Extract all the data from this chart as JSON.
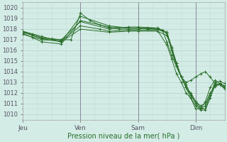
{
  "title": "Pression niveau de la mer( hPa )",
  "ylabel_values": [
    1010,
    1011,
    1012,
    1013,
    1014,
    1015,
    1016,
    1017,
    1018,
    1019,
    1020
  ],
  "ylim": [
    1009.5,
    1020.5
  ],
  "xlim": [
    0,
    84
  ],
  "xtick_positions": [
    0,
    24,
    48,
    72
  ],
  "xtick_labels": [
    "Jeu",
    "Ven",
    "Sam",
    "Dim"
  ],
  "bg_color": "#d4ece6",
  "grid_color": "#b8d8d0",
  "line_color": "#2a6e2a",
  "lines": [
    [
      0,
      1017.7,
      4,
      1017.5,
      8,
      1017.2,
      12,
      1017.1,
      16,
      1017.0,
      20,
      1017.0,
      24,
      1019.5,
      28,
      1018.8,
      32,
      1018.4,
      36,
      1018.1,
      40,
      1018.0,
      44,
      1018.0,
      48,
      1018.0,
      52,
      1018.1,
      56,
      1018.1,
      58,
      1017.9,
      60,
      1016.8,
      62,
      1015.5,
      64,
      1014.5,
      66,
      1013.5,
      68,
      1012.5,
      70,
      1012.0,
      72,
      1011.2,
      74,
      1010.6,
      76,
      1010.5,
      78,
      1011.8,
      80,
      1012.8,
      82,
      1012.8,
      84,
      1012.5
    ],
    [
      0,
      1017.5,
      8,
      1017.0,
      16,
      1016.9,
      24,
      1018.3,
      32,
      1018.0,
      36,
      1017.8,
      44,
      1017.9,
      48,
      1017.9,
      56,
      1017.9,
      60,
      1016.5,
      62,
      1015.2,
      64,
      1013.8,
      66,
      1013.0,
      68,
      1012.0,
      70,
      1011.5,
      72,
      1010.8,
      74,
      1010.4,
      76,
      1010.4,
      78,
      1011.5,
      80,
      1012.7,
      82,
      1012.9,
      84,
      1012.6
    ],
    [
      0,
      1017.8,
      4,
      1017.4,
      8,
      1017.1,
      16,
      1016.8,
      24,
      1018.0,
      36,
      1017.7,
      44,
      1017.8,
      48,
      1017.8,
      56,
      1017.8,
      60,
      1017.4,
      62,
      1016.2,
      64,
      1014.8,
      66,
      1013.5,
      68,
      1013.0,
      70,
      1013.2,
      72,
      1013.5,
      74,
      1013.8,
      76,
      1014.0,
      78,
      1013.5,
      80,
      1012.9,
      82,
      1012.8,
      84,
      1012.4
    ],
    [
      0,
      1017.6,
      4,
      1017.2,
      8,
      1016.8,
      16,
      1016.6,
      24,
      1018.8,
      36,
      1018.2,
      44,
      1018.1,
      48,
      1018.1,
      56,
      1018.0,
      60,
      1017.6,
      62,
      1016.0,
      64,
      1014.5,
      66,
      1013.5,
      68,
      1012.5,
      70,
      1011.8,
      72,
      1011.0,
      74,
      1010.5,
      76,
      1010.8,
      78,
      1011.8,
      80,
      1013.0,
      82,
      1013.1,
      84,
      1012.9
    ],
    [
      0,
      1017.7,
      8,
      1017.1,
      16,
      1017.0,
      24,
      1018.7,
      36,
      1018.0,
      44,
      1018.2,
      48,
      1018.2,
      56,
      1018.1,
      60,
      1017.7,
      62,
      1016.3,
      64,
      1014.8,
      66,
      1013.5,
      68,
      1012.5,
      70,
      1011.5,
      72,
      1010.5,
      74,
      1010.5,
      76,
      1011.2,
      78,
      1012.5,
      80,
      1013.2,
      82,
      1012.9,
      84,
      1012.7
    ],
    [
      0,
      1017.8,
      8,
      1017.3,
      16,
      1016.8,
      24,
      1019.2,
      36,
      1018.3,
      44,
      1018.1,
      48,
      1018.1,
      52,
      1018.0,
      56,
      1018.0,
      60,
      1017.7,
      62,
      1016.0,
      64,
      1014.5,
      66,
      1013.5,
      68,
      1012.8,
      70,
      1011.8,
      72,
      1011.2,
      74,
      1010.8,
      76,
      1011.0,
      78,
      1012.0,
      80,
      1012.6,
      82,
      1012.8,
      84,
      1012.5
    ]
  ]
}
